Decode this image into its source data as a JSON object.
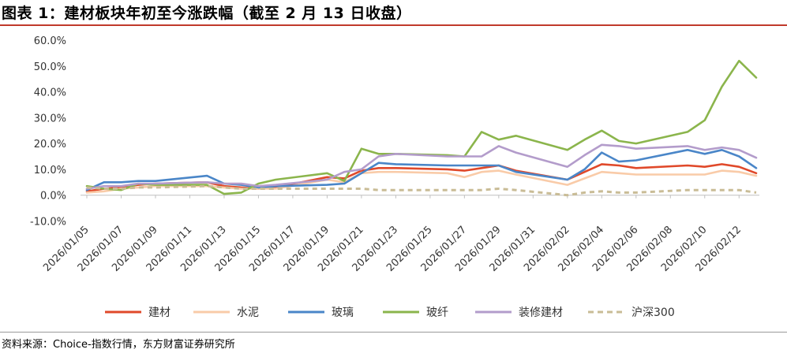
{
  "header": {
    "title": "图表 1：建材板块年初至今涨跌幅（截至 2 月 13 日收盘）"
  },
  "footer": {
    "source": "资料来源：Choice-指数行情，东方财富证券研究所"
  },
  "chart_data": {
    "type": "line",
    "title": "图表 1：建材板块年初至今涨跌幅（截至 2 月 13 日收盘）",
    "ylim": [
      -10,
      60
    ],
    "yticks": [
      "-10.0%",
      "0.0%",
      "10.0%",
      "20.0%",
      "30.0%",
      "40.0%",
      "50.0%",
      "60.0%"
    ],
    "ytick_values": [
      -10,
      0,
      10,
      20,
      30,
      40,
      50,
      60
    ],
    "xtick_labels": [
      "2026/01/05",
      "2026/01/07",
      "2026/01/09",
      "2026/01/11",
      "2026/01/13",
      "2026/01/15",
      "2026/01/17",
      "2026/01/19",
      "2026/01/21",
      "2026/01/23",
      "2026/01/25",
      "2026/01/27",
      "2026/01/29",
      "2026/01/31",
      "2026/02/02",
      "2026/02/04",
      "2026/02/06",
      "2026/02/08",
      "2026/02/10",
      "2026/02/12"
    ],
    "x": [
      "2026/01/05",
      "2026/01/06",
      "2026/01/07",
      "2026/01/08",
      "2026/01/09",
      "2026/01/12",
      "2026/01/13",
      "2026/01/14",
      "2026/01/15",
      "2026/01/16",
      "2026/01/19",
      "2026/01/20",
      "2026/01/21",
      "2026/01/22",
      "2026/01/23",
      "2026/01/26",
      "2026/01/27",
      "2026/01/28",
      "2026/01/29",
      "2026/01/30",
      "2026/02/02",
      "2026/02/03",
      "2026/02/04",
      "2026/02/05",
      "2026/02/06",
      "2026/02/09",
      "2026/02/10",
      "2026/02/11",
      "2026/02/12",
      "2026/02/13"
    ],
    "legend_position": "bottom",
    "grid": false,
    "series": [
      {
        "name": "建材",
        "color": "#e0492a",
        "dash": false,
        "values": [
          1.5,
          2.5,
          3.0,
          4.0,
          4.5,
          5.0,
          3.5,
          3.0,
          2.5,
          3.0,
          7.0,
          6.5,
          9.5,
          10.5,
          10.5,
          10.0,
          9.5,
          10.5,
          11.5,
          9.5,
          6.0,
          9.0,
          12.0,
          11.5,
          10.5,
          11.5,
          11.0,
          12.0,
          11.0,
          8.5
        ]
      },
      {
        "name": "水泥",
        "color": "#f9cba8",
        "dash": false,
        "values": [
          1.0,
          1.5,
          2.5,
          3.0,
          3.5,
          3.5,
          3.0,
          2.5,
          2.5,
          2.5,
          6.0,
          5.0,
          8.5,
          9.0,
          9.0,
          8.5,
          7.0,
          9.0,
          9.5,
          8.0,
          4.0,
          6.5,
          9.0,
          8.5,
          8.0,
          8.0,
          8.0,
          9.5,
          9.0,
          7.5
        ]
      },
      {
        "name": "玻璃",
        "color": "#4a86c8",
        "dash": false,
        "values": [
          2.0,
          5.0,
          5.0,
          5.5,
          5.5,
          7.5,
          4.5,
          4.0,
          3.0,
          3.5,
          4.0,
          4.5,
          8.5,
          12.5,
          12.0,
          11.5,
          11.5,
          11.5,
          11.5,
          9.0,
          6.0,
          10.0,
          16.5,
          13.0,
          13.5,
          17.5,
          16.0,
          17.5,
          15.0,
          10.5
        ]
      },
      {
        "name": "玻纤",
        "color": "#8bb54c",
        "dash": false,
        "values": [
          3.5,
          2.5,
          2.0,
          4.5,
          4.0,
          4.0,
          0.5,
          1.0,
          4.5,
          6.0,
          8.5,
          5.5,
          18.0,
          16.0,
          16.0,
          15.5,
          15.0,
          24.5,
          21.5,
          23.0,
          17.5,
          21.5,
          25.0,
          21.0,
          20.0,
          24.5,
          29.0,
          42.0,
          52.0,
          45.5
        ]
      },
      {
        "name": "装修建材",
        "color": "#b39ccb",
        "dash": false,
        "values": [
          2.5,
          3.5,
          3.5,
          4.5,
          4.5,
          5.0,
          4.5,
          4.5,
          3.5,
          4.0,
          6.0,
          9.0,
          10.0,
          15.0,
          16.0,
          15.0,
          15.0,
          15.0,
          19.0,
          16.5,
          11.0,
          15.5,
          19.5,
          19.0,
          18.0,
          19.0,
          17.5,
          18.5,
          17.5,
          14.5
        ]
      },
      {
        "name": "沪深300",
        "color": "#c9bc96",
        "dash": true,
        "values": [
          3.0,
          2.5,
          2.5,
          3.0,
          3.0,
          3.5,
          3.0,
          2.5,
          2.5,
          2.5,
          2.5,
          2.5,
          2.5,
          2.0,
          2.0,
          2.0,
          2.0,
          2.0,
          2.5,
          2.0,
          0.0,
          1.0,
          1.5,
          1.0,
          1.0,
          2.0,
          2.0,
          2.0,
          2.0,
          1.0
        ]
      }
    ]
  }
}
